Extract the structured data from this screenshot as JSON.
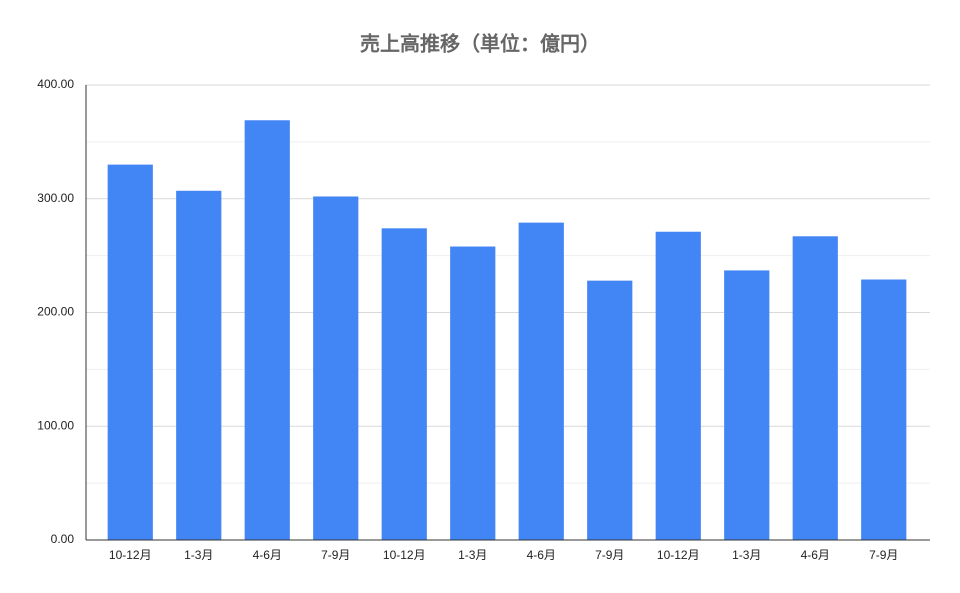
{
  "chart_data": {
    "type": "bar",
    "title": "売上高推移（単位：億円）",
    "categories": [
      "10-12月",
      "1-3月",
      "4-6月",
      "7-9月",
      "10-12月",
      "1-3月",
      "4-6月",
      "7-9月",
      "10-12月",
      "1-3月",
      "4-6月",
      "7-9月"
    ],
    "values": [
      330,
      307,
      369,
      302,
      274,
      258,
      279,
      228,
      271,
      237,
      267,
      229
    ],
    "color": "#4285f4",
    "ylim": [
      0,
      400
    ],
    "yticks": [
      {
        "value": 0,
        "label": "0.00"
      },
      {
        "value": 100,
        "label": "100.00"
      },
      {
        "value": 200,
        "label": "200.00"
      },
      {
        "value": 300,
        "label": "300.00"
      },
      {
        "value": 400,
        "label": "400.00"
      }
    ],
    "minor_yticks": [
      50,
      150,
      250,
      350
    ],
    "grid": true
  }
}
